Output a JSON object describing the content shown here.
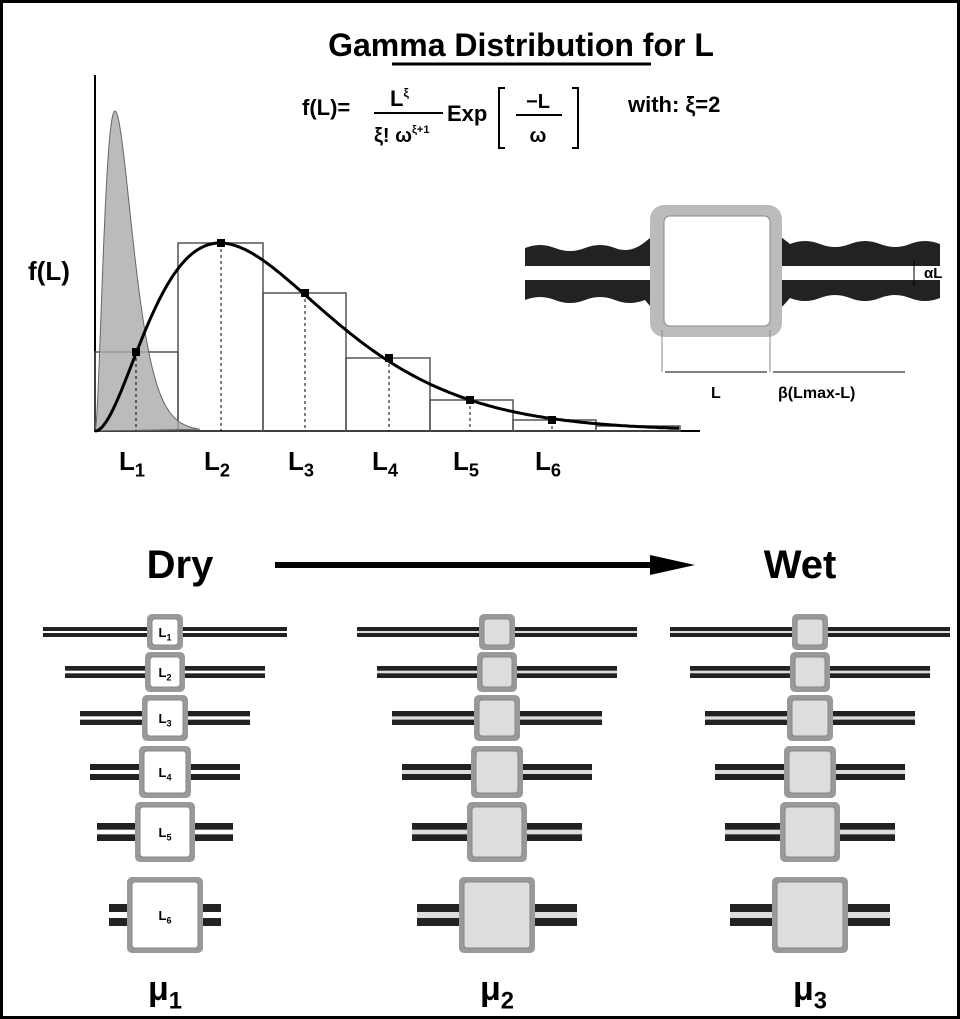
{
  "title": "Gamma Distribution for L",
  "formula": {
    "lhs": "f(L)=",
    "num_base": "L",
    "num_sup": "ξ",
    "den_base": "ξ! ω",
    "den_sup": "ξ+1",
    "exp": "Exp",
    "exp_num": "−L",
    "exp_den": "ω",
    "with": "with: ξ=2"
  },
  "plot": {
    "y_label": "f(L)",
    "x_labels": [
      {
        "base": "L",
        "sub": "1"
      },
      {
        "base": "L",
        "sub": "2"
      },
      {
        "base": "L",
        "sub": "3"
      },
      {
        "base": "L",
        "sub": "4"
      },
      {
        "base": "L",
        "sub": "5"
      },
      {
        "base": "L",
        "sub": "6"
      }
    ]
  },
  "pore_diagram": {
    "width_label": "αL",
    "length_label": "L",
    "throat_label": "β(Lmax-L)"
  },
  "dry": "Dry",
  "wet": "Wet",
  "pores": {
    "labels": [
      {
        "base": "L",
        "sub": "1"
      },
      {
        "base": "L",
        "sub": "2"
      },
      {
        "base": "L",
        "sub": "3"
      },
      {
        "base": "L",
        "sub": "4"
      },
      {
        "base": "L",
        "sub": "5"
      },
      {
        "base": "L",
        "sub": "6"
      }
    ]
  },
  "columns": [
    {
      "base": "μ",
      "sub": "1"
    },
    {
      "base": "μ",
      "sub": "2"
    },
    {
      "base": "μ",
      "sub": "3"
    }
  ]
}
